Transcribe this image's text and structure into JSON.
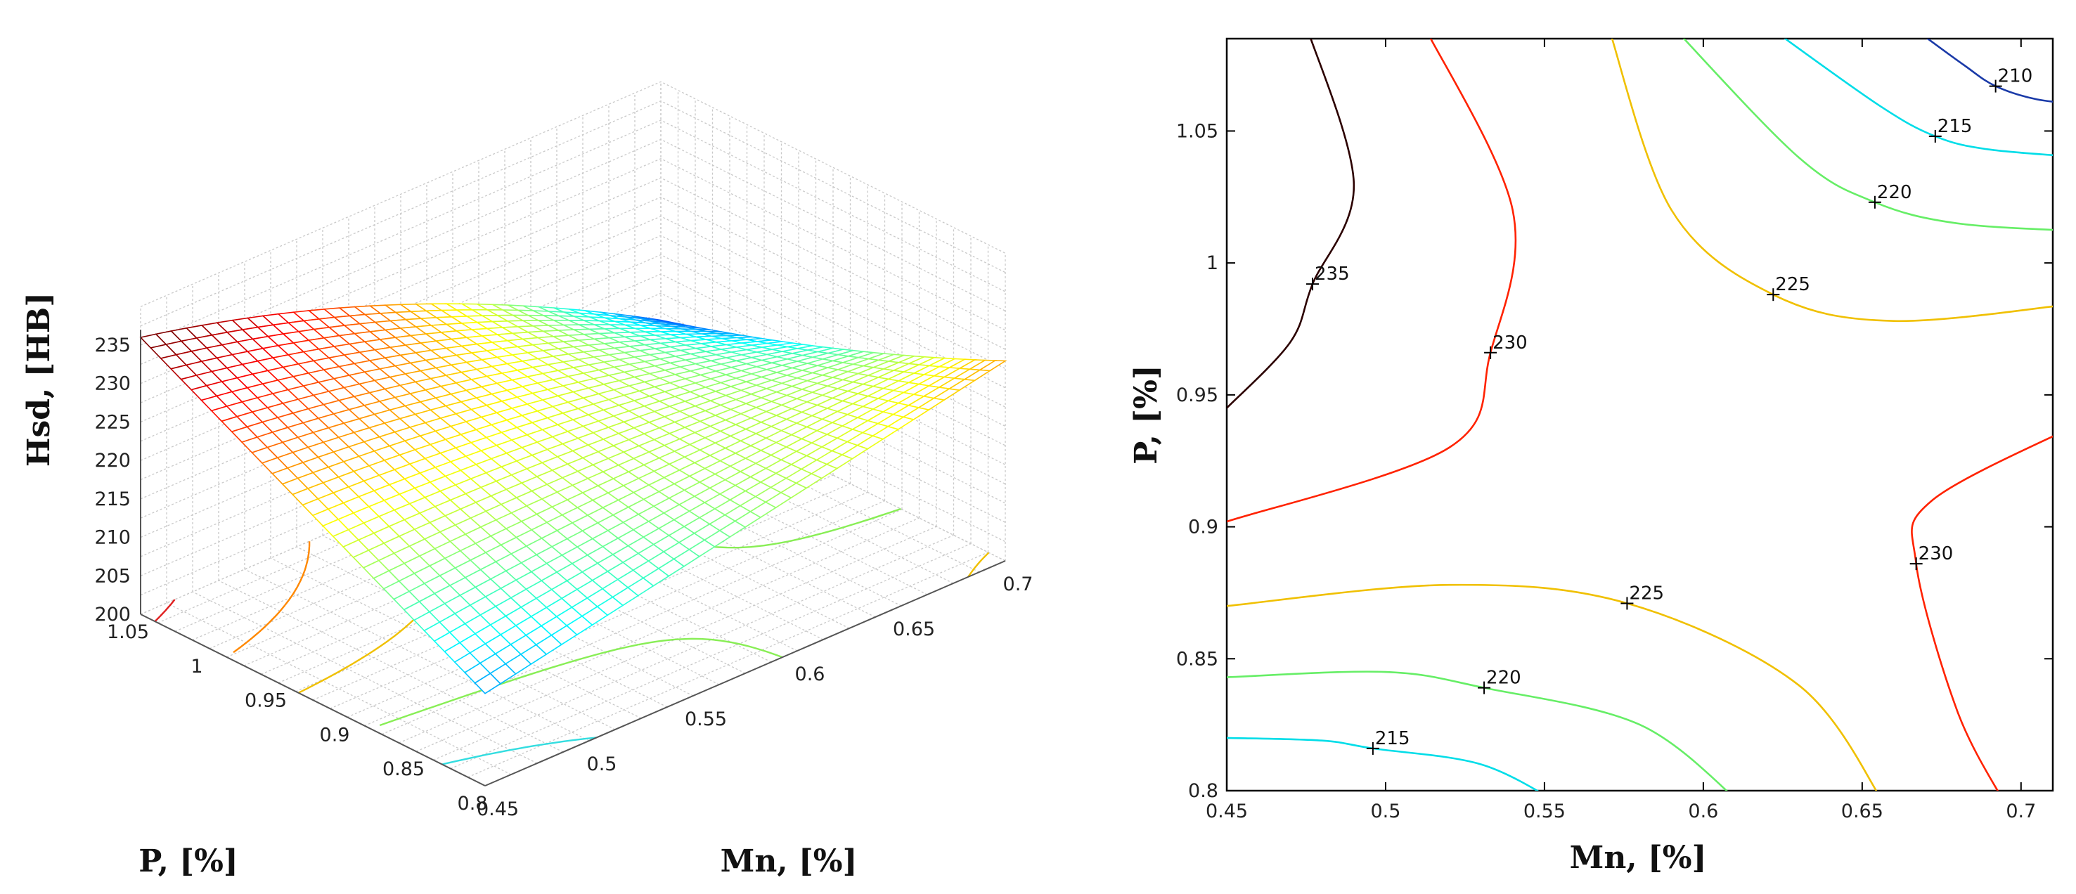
{
  "chart_data": [
    {
      "type": "surface",
      "title": "",
      "xlabel": "Mn, [%]",
      "ylabel": "P, [%]",
      "zlabel": "Hsd, [HB]",
      "xlim": [
        0.45,
        0.7
      ],
      "ylim": [
        0.8,
        1.05
      ],
      "zlim": [
        200,
        235
      ],
      "x_ticks": [
        "0.45",
        "0.5",
        "0.55",
        "0.6",
        "0.65",
        "0.7"
      ],
      "y_ticks": [
        "0.8",
        "0.85",
        "0.9",
        "0.95",
        "1",
        "1.05"
      ],
      "z_ticks": [
        "200",
        "205",
        "210",
        "215",
        "220",
        "225",
        "230",
        "235"
      ],
      "corner_values": [
        {
          "mn": 0.45,
          "p": 1.05,
          "hsd": 236
        },
        {
          "mn": 0.7,
          "p": 1.05,
          "hsd": 209
        },
        {
          "mn": 0.45,
          "p": 0.8,
          "hsd": 212
        },
        {
          "mn": 0.7,
          "p": 0.8,
          "hsd": 226
        }
      ],
      "colormap": "jet",
      "floor_contours": true
    },
    {
      "type": "contour",
      "title": "",
      "xlabel": "Mn, [%]",
      "ylabel": "P, [%]",
      "xlim": [
        0.45,
        0.71
      ],
      "ylim": [
        0.8,
        1.085
      ],
      "x_ticks": [
        "0.45",
        "0.5",
        "0.55",
        "0.6",
        "0.65",
        "0.7"
      ],
      "y_ticks": [
        "0.8",
        "0.85",
        "0.9",
        "0.95",
        "1",
        "1.05"
      ],
      "levels": [
        {
          "value": 235,
          "label": "235",
          "color": "#2b0000",
          "label_at": [
            0.477,
            0.992
          ]
        },
        {
          "value": 230,
          "label": "230",
          "color": "#ff2200",
          "label_at": [
            0.533,
            0.966
          ]
        },
        {
          "value": 230,
          "label": "230",
          "color": "#ff2200",
          "label_at": [
            0.667,
            0.886
          ]
        },
        {
          "value": 225,
          "label": "225",
          "color": "#f0c000",
          "label_at": [
            0.622,
            0.988
          ]
        },
        {
          "value": 225,
          "label": "225",
          "color": "#f0c000",
          "label_at": [
            0.576,
            0.871
          ]
        },
        {
          "value": 220,
          "label": "220",
          "color": "#66ee66",
          "label_at": [
            0.654,
            1.023
          ]
        },
        {
          "value": 220,
          "label": "220",
          "color": "#66ee66",
          "label_at": [
            0.531,
            0.839
          ]
        },
        {
          "value": 215,
          "label": "215",
          "color": "#00dde8",
          "label_at": [
            0.673,
            1.048
          ]
        },
        {
          "value": 215,
          "label": "215",
          "color": "#00dde8",
          "label_at": [
            0.496,
            0.816
          ]
        },
        {
          "value": 210,
          "label": "210",
          "color": "#1a3aa8",
          "label_at": [
            0.692,
            1.067
          ]
        }
      ]
    }
  ]
}
